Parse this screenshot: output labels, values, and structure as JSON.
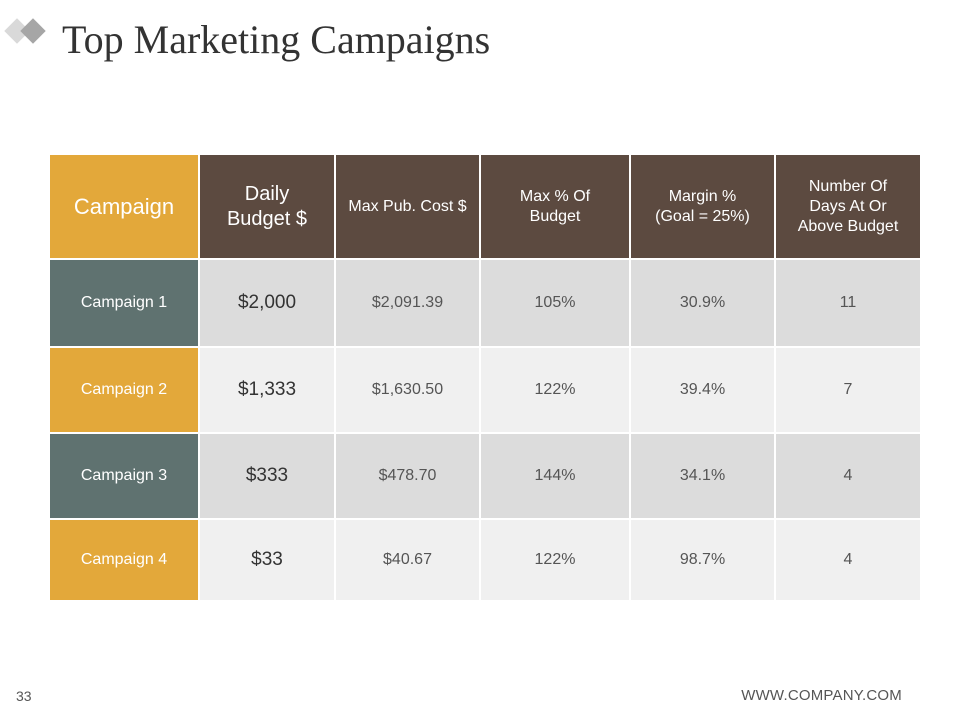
{
  "title": "Top Marketing Campaigns",
  "table": {
    "headers": [
      "Campaign",
      "Daily Budget $",
      "Max Pub. Cost $",
      "Max % Of Budget",
      "Margin % (Goal = 25%)",
      "Number Of Days At Or Above Budget"
    ],
    "rows": [
      [
        "Campaign 1",
        "$2,000",
        "$2,091.39",
        "105%",
        "30.9%",
        "11"
      ],
      [
        "Campaign 2",
        "$1,333",
        "$1,630.50",
        "122%",
        "39.4%",
        "7"
      ],
      [
        "Campaign 3",
        "$333",
        "$478.70",
        "144%",
        "34.1%",
        "4"
      ],
      [
        "Campaign 4",
        "$33",
        "$40.67",
        "122%",
        "98.7%",
        "4"
      ]
    ]
  },
  "footer": {
    "page_number": "33",
    "url": "WWW.COMPANY.COM"
  },
  "colors": {
    "header_brown": "#5c4a40",
    "accent_gold": "#e3a83a",
    "teal_gray": "#5f7270"
  }
}
